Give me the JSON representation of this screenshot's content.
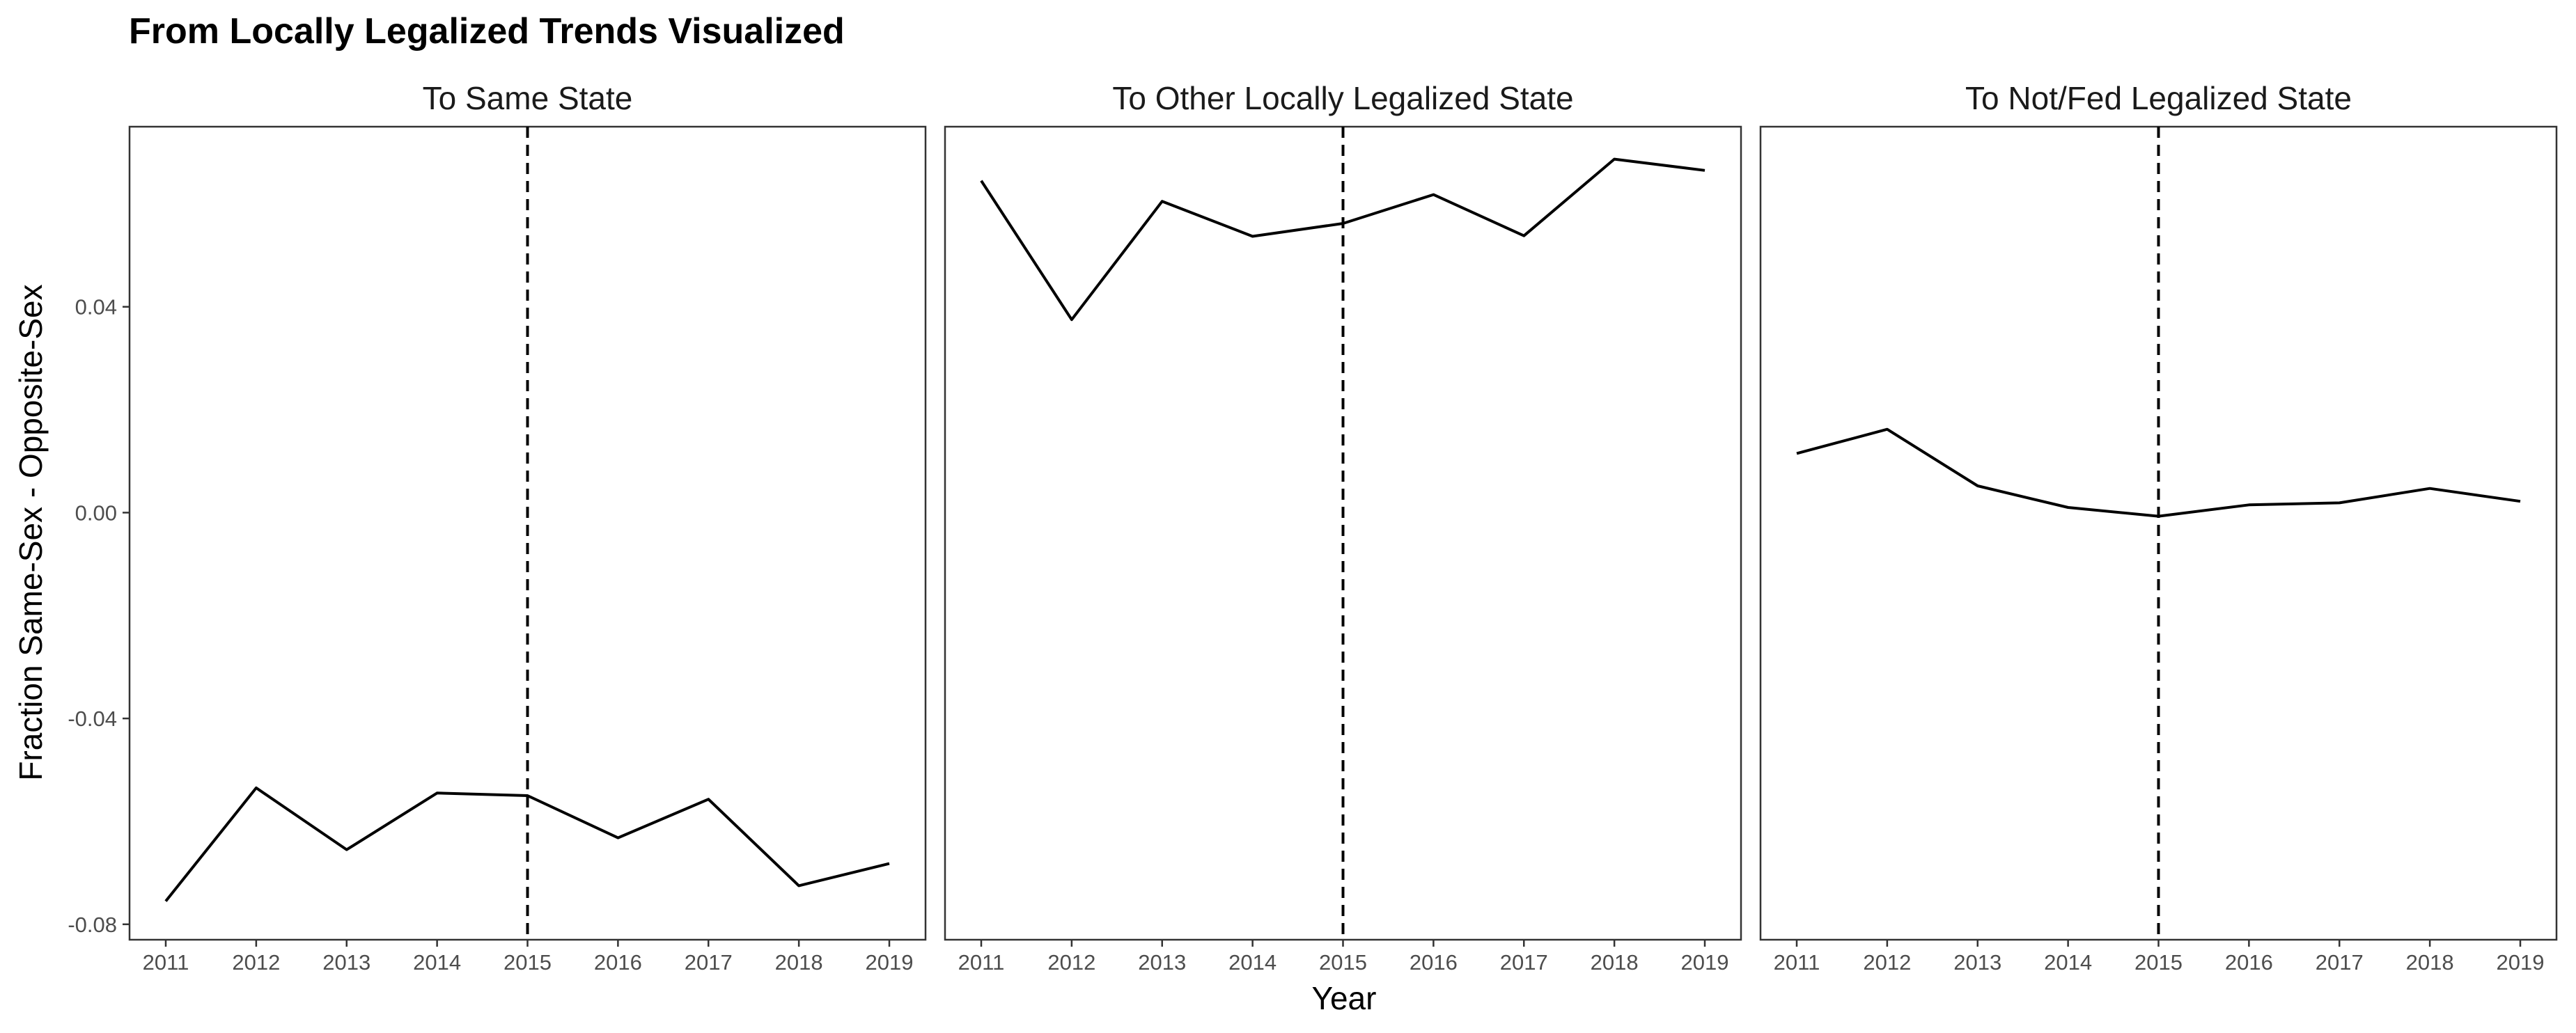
{
  "chart_data": {
    "type": "line",
    "title": "From Locally Legalized Trends Visualized",
    "xlabel": "Year",
    "ylabel": "Fraction Same-Sex - Opposite-Sex",
    "x": [
      2011,
      2012,
      2013,
      2014,
      2015,
      2016,
      2017,
      2018,
      2019
    ],
    "x_tick_labels": [
      "2011",
      "2012",
      "2013",
      "2014",
      "2015",
      "2016",
      "2017",
      "2018",
      "2019"
    ],
    "y_ticks": [
      -0.08,
      -0.04,
      0.0,
      0.04
    ],
    "y_tick_labels": [
      "-0.08",
      "-0.04",
      "0.00",
      "0.04"
    ],
    "ylim": [
      -0.083,
      0.075
    ],
    "vline_x": 2015,
    "grid": false,
    "panels": [
      {
        "strip_label": "To Same State",
        "values": [
          -0.0755,
          -0.0535,
          -0.0655,
          -0.0545,
          -0.055,
          -0.0632,
          -0.0557,
          -0.0725,
          -0.0682
        ]
      },
      {
        "strip_label": "To Other Locally Legalized State",
        "values": [
          0.0645,
          0.0375,
          0.0605,
          0.0537,
          0.0562,
          0.0618,
          0.0538,
          0.0687,
          0.0665
        ]
      },
      {
        "strip_label": "To Not/Fed Legalized State",
        "values": [
          0.0115,
          0.0162,
          0.0052,
          0.001,
          -0.0007,
          0.0015,
          0.0019,
          0.0047,
          0.0022
        ]
      }
    ]
  }
}
